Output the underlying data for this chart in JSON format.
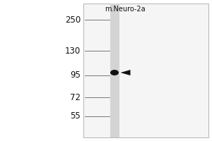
{
  "fig_width": 3.0,
  "fig_height": 2.0,
  "dpi": 100,
  "bg_color": "#ffffff",
  "column_label": "m.Neuro-2a",
  "column_label_fontsize": 7.0,
  "mw_markers": [
    250,
    130,
    95,
    72,
    55
  ],
  "mw_fontsize": 8.5,
  "band_color": "#111111",
  "arrow_color": "#111111",
  "lane_color": "#d4d4d4",
  "gel_panel_color": "#f5f5f5",
  "gel_border_color": "#aaaaaa"
}
